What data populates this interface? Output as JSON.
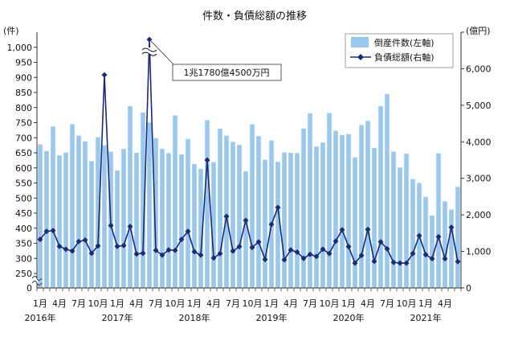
{
  "chart_data": {
    "type": "bar",
    "title": "件数・負債総額の推移",
    "left_axis_label": "(件)",
    "right_axis_label": "(億円)",
    "left_ylim": [
      250,
      1050
    ],
    "left_ticks": [
      250,
      300,
      350,
      400,
      450,
      500,
      550,
      600,
      650,
      700,
      750,
      800,
      850,
      900,
      950,
      1000
    ],
    "left_tick_labels": [
      "250",
      "300",
      "350",
      "400",
      "450",
      "500",
      "550",
      "600",
      "650",
      "700",
      "750",
      "800",
      "850",
      "900",
      "950",
      "1,000"
    ],
    "left_zero_label": "0",
    "right_ylim": [
      0,
      7000
    ],
    "right_ticks": [
      0,
      1000,
      2000,
      3000,
      4000,
      5000,
      6000,
      7000
    ],
    "right_tick_labels": [
      "0",
      "1,000",
      "2,000",
      "3,000",
      "4,000",
      "5,000",
      "6,000",
      ""
    ],
    "month_labels": [
      "1月",
      "",
      "",
      "4月",
      "",
      "",
      "7月",
      "",
      "",
      "10月",
      "",
      "",
      "1月",
      "",
      "",
      "4月",
      "",
      "",
      "7月",
      "",
      "",
      "10月",
      "",
      "",
      "1月",
      "",
      "",
      "4月",
      "",
      "",
      "7月",
      "",
      "",
      "10月",
      "",
      "",
      "1月",
      "",
      "",
      "4月",
      "",
      "",
      "7月",
      "",
      "",
      "10月",
      "",
      "",
      "1月",
      "",
      "",
      "4月",
      "",
      "",
      "7月",
      "",
      "",
      "10月",
      "",
      "",
      "1月",
      "",
      "",
      "4月",
      "",
      ""
    ],
    "year_labels": [
      {
        "index": 0,
        "label": "2016年"
      },
      {
        "index": 12,
        "label": "2017年"
      },
      {
        "index": 24,
        "label": "2018年"
      },
      {
        "index": 36,
        "label": "2019年"
      },
      {
        "index": 48,
        "label": "2020年"
      },
      {
        "index": 60,
        "label": "2021年"
      }
    ],
    "series": [
      {
        "name": "倒産件数(左軸)",
        "axis": "left",
        "color": "#99c7ee",
        "values": [
          678,
          656,
          737,
          641,
          651,
          745,
          707,
          688,
          622,
          702,
          675,
          654,
          591,
          663,
          805,
          650,
          784,
          750,
          699,
          663,
          649,
          774,
          645,
          696,
          613,
          597,
          758,
          619,
          730,
          707,
          686,
          676,
          589,
          744,
          705,
          627,
          691,
          620,
          651,
          650,
          649,
          731,
          781,
          671,
          684,
          782,
          723,
          709,
          712,
          635,
          742,
          756,
          666,
          805,
          845,
          654,
          601,
          647,
          563,
          550,
          504,
          442,
          648,
          489,
          462,
          537
        ]
      },
      {
        "name": "負債総額(右軸)",
        "axis": "right",
        "color": "#1a2a7a",
        "values": [
          1330,
          1550,
          1570,
          1140,
          1060,
          1010,
          1270,
          1310,
          950,
          1150,
          5830,
          1710,
          1140,
          1160,
          1680,
          930,
          950,
          6800,
          1030,
          900,
          1040,
          1030,
          1330,
          1550,
          990,
          900,
          3500,
          820,
          940,
          1960,
          1010,
          1130,
          1850,
          1110,
          1260,
          780,
          1740,
          2200,
          770,
          1040,
          980,
          810,
          920,
          860,
          1060,
          940,
          1280,
          1590,
          1130,
          680,
          890,
          1600,
          730,
          1260,
          1070,
          700,
          680,
          680,
          940,
          1430,
          910,
          800,
          1400,
          800,
          1660,
          720
        ]
      }
    ],
    "legend": {
      "placement": "top-right",
      "entries": [
        "倒産件数(左軸)",
        "負債総額(右軸)"
      ]
    },
    "annotation": {
      "text": "1兆1780億4500万円",
      "target_index": 17,
      "target_series": "負債総額(右軸)"
    },
    "grid": false
  }
}
